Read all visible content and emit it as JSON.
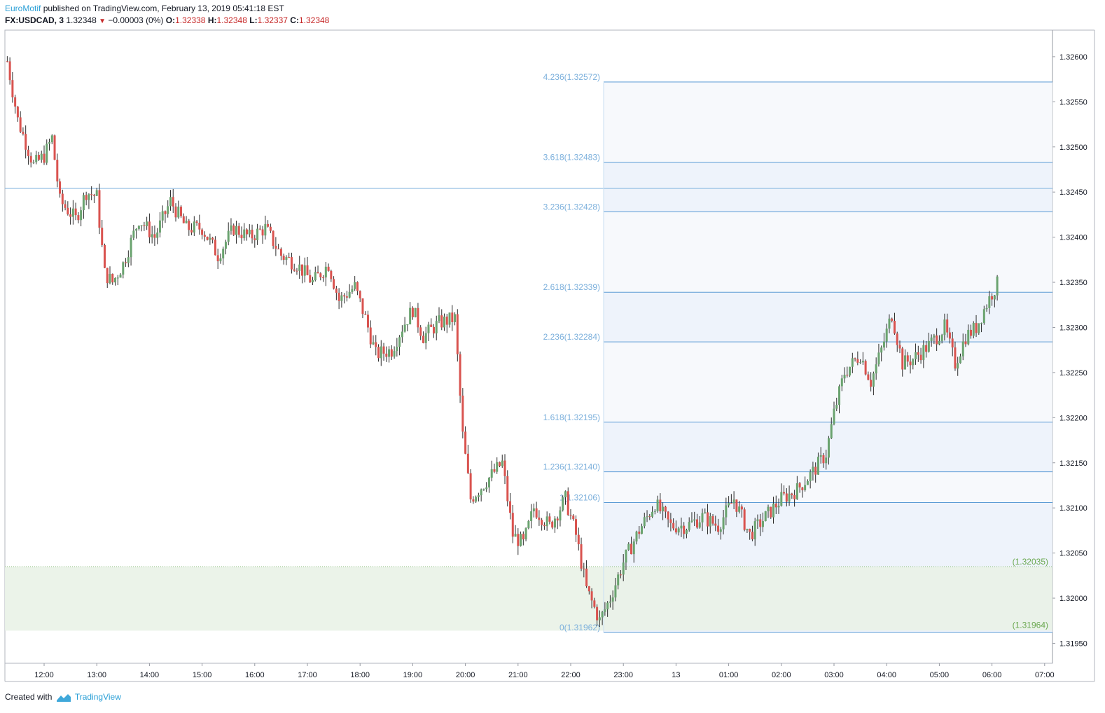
{
  "header": {
    "author": "EuroMotif",
    "published_text": "published on TradingView.com, February 13, 2019 05:41:18 EST",
    "symbol": "FX:USDCAD, 3",
    "last": "1.32348",
    "change": "−0.00003 (0%)",
    "o_label": "O:",
    "o_value": "1.32338",
    "h_label": "H:",
    "h_value": "1.32348",
    "l_label": "L:",
    "l_value": "1.32337",
    "c_label": "C:",
    "c_value": "1.32348"
  },
  "footer": {
    "created_with": "Created with",
    "brand": "TradingView"
  },
  "colors": {
    "up": "#6aa36f",
    "down": "#d9534f",
    "fib": "#7cb0dc",
    "fib_line": "#5b9bd5",
    "green": "#6aa84f"
  },
  "chart_data": {
    "type": "candlestick",
    "title": "",
    "ylim": [
      1.3191,
      1.3264
    ],
    "y_ticks": [
      "1.32600",
      "1.32550",
      "1.32500",
      "1.32450",
      "1.32400",
      "1.32350",
      "1.32300",
      "1.32250",
      "1.32200",
      "1.32150",
      "1.32100",
      "1.32050",
      "1.32000",
      "1.31950"
    ],
    "x_ticks": [
      "12:00",
      "13:00",
      "14:00",
      "15:00",
      "16:00",
      "17:00",
      "18:00",
      "19:00",
      "20:00",
      "21:00",
      "22:00",
      "23:00",
      "13",
      "01:00",
      "02:00",
      "03:00",
      "04:00",
      "05:00",
      "06:00",
      "07:00"
    ],
    "horizontal_line": 1.32454,
    "green_zone": {
      "top": 1.32035,
      "bottom": 1.31964,
      "top_label": "(1.32035)",
      "bottom_label": "(1.31964)"
    },
    "fib_levels": [
      {
        "label": "4.236(1.32572)",
        "value": 1.32572
      },
      {
        "label": "3.618(1.32483)",
        "value": 1.32483
      },
      {
        "label": "3.236(1.32428)",
        "value": 1.32428
      },
      {
        "label": "2.618(1.32339)",
        "value": 1.32339
      },
      {
        "label": "2.236(1.32284)",
        "value": 1.32284
      },
      {
        "label": "1.618(1.32195)",
        "value": 1.32195
      },
      {
        "label": "1.236(1.32140)",
        "value": 1.3214
      },
      {
        "label": "1(1.32106)",
        "value": 1.32106
      },
      {
        "label": "0(1.31962)",
        "value": 1.31962
      }
    ],
    "price_path": [
      [
        11.3,
        1.32595
      ],
      [
        11.5,
        1.3253
      ],
      [
        11.8,
        1.3248
      ],
      [
        12.0,
        1.3249
      ],
      [
        12.15,
        1.3251
      ],
      [
        12.3,
        1.3244
      ],
      [
        12.6,
        1.3242
      ],
      [
        12.8,
        1.3245
      ],
      [
        13.0,
        1.32445
      ],
      [
        13.15,
        1.3236
      ],
      [
        13.3,
        1.3235
      ],
      [
        13.5,
        1.3237
      ],
      [
        13.8,
        1.3242
      ],
      [
        14.1,
        1.324
      ],
      [
        14.4,
        1.3244
      ],
      [
        14.7,
        1.3241
      ],
      [
        15.0,
        1.3241
      ],
      [
        15.3,
        1.3238
      ],
      [
        15.6,
        1.3241
      ],
      [
        15.9,
        1.324
      ],
      [
        16.2,
        1.3241
      ],
      [
        16.5,
        1.3238
      ],
      [
        16.8,
        1.3237
      ],
      [
        17.1,
        1.3235
      ],
      [
        17.4,
        1.3237
      ],
      [
        17.6,
        1.3233
      ],
      [
        17.9,
        1.32345
      ],
      [
        18.1,
        1.3231
      ],
      [
        18.3,
        1.3227
      ],
      [
        18.6,
        1.32275
      ],
      [
        18.8,
        1.323
      ],
      [
        19.0,
        1.3232
      ],
      [
        19.2,
        1.3229
      ],
      [
        19.5,
        1.32305
      ],
      [
        19.8,
        1.3231
      ],
      [
        19.95,
        1.3218
      ],
      [
        20.1,
        1.3211
      ],
      [
        20.4,
        1.3213
      ],
      [
        20.7,
        1.3215
      ],
      [
        20.9,
        1.3207
      ],
      [
        21.1,
        1.3206
      ],
      [
        21.3,
        1.321
      ],
      [
        21.6,
        1.3208
      ],
      [
        21.9,
        1.3211
      ],
      [
        22.1,
        1.3207
      ],
      [
        22.3,
        1.3201
      ],
      [
        22.55,
        1.31975
      ],
      [
        22.75,
        1.32
      ],
      [
        23.0,
        1.3204
      ],
      [
        23.3,
        1.32075
      ],
      [
        23.6,
        1.32105
      ],
      [
        23.9,
        1.3208
      ],
      [
        24.2,
        1.3208
      ],
      [
        24.5,
        1.3209
      ],
      [
        24.8,
        1.3208
      ],
      [
        25.1,
        1.3211
      ],
      [
        25.4,
        1.3207
      ],
      [
        25.7,
        1.3209
      ],
      [
        26.0,
        1.3211
      ],
      [
        26.3,
        1.3212
      ],
      [
        26.6,
        1.3214
      ],
      [
        26.85,
        1.3216
      ],
      [
        27.0,
        1.32205
      ],
      [
        27.2,
        1.3225
      ],
      [
        27.5,
        1.3227
      ],
      [
        27.7,
        1.3224
      ],
      [
        27.9,
        1.32275
      ],
      [
        28.1,
        1.32315
      ],
      [
        28.3,
        1.3226
      ],
      [
        28.5,
        1.32265
      ],
      [
        28.8,
        1.3228
      ],
      [
        29.1,
        1.323
      ],
      [
        29.3,
        1.3226
      ],
      [
        29.5,
        1.3229
      ],
      [
        29.7,
        1.323
      ],
      [
        29.85,
        1.3232
      ],
      [
        30.0,
        1.32338
      ],
      [
        30.1,
        1.32348
      ]
    ]
  }
}
